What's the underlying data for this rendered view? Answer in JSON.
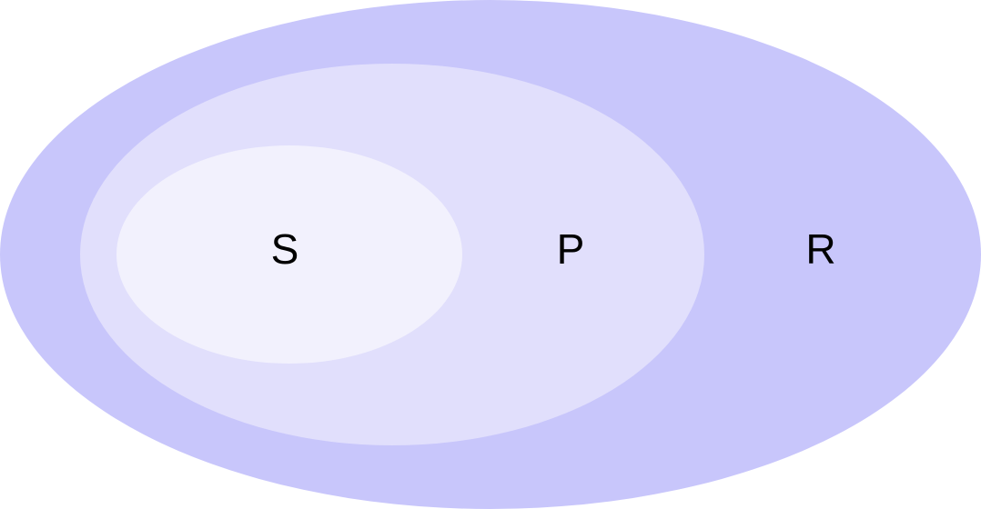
{
  "diagram": {
    "sets": [
      {
        "id": "R",
        "label": "R",
        "color": "#c8c6fb"
      },
      {
        "id": "P",
        "label": "P",
        "color": "#e1dffc"
      },
      {
        "id": "S",
        "label": "S",
        "color": "#f2f1fd"
      }
    ],
    "relations": [
      {
        "subset": "S",
        "superset": "P"
      },
      {
        "subset": "P",
        "superset": "R"
      }
    ]
  }
}
